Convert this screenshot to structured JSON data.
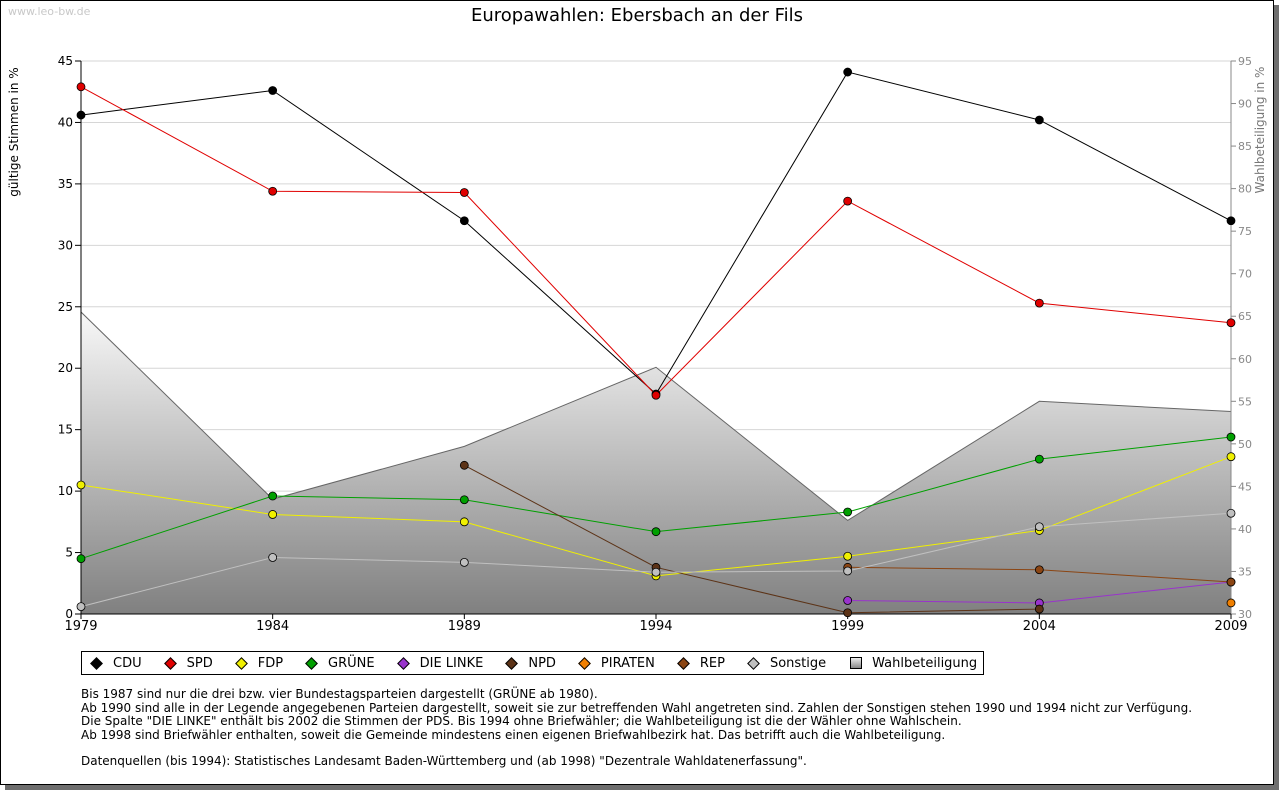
{
  "watermark": "www.leo-bw.de",
  "chart_data": {
    "type": "line",
    "title": "Europawahlen: Ebersbach an der Fils",
    "ylabel": "gültige Stimmen in %",
    "y2label": "Wahlbeteiligung in %",
    "x": [
      "1979",
      "1984",
      "1989",
      "1994",
      "1999",
      "2004",
      "2009"
    ],
    "ylim": [
      0,
      45
    ],
    "yticks": [
      0,
      5,
      10,
      15,
      20,
      25,
      30,
      35,
      40,
      45
    ],
    "y2lim": [
      30,
      95
    ],
    "y2ticks": [
      30,
      35,
      40,
      45,
      50,
      55,
      60,
      65,
      70,
      75,
      80,
      85,
      90,
      95
    ],
    "grid": true,
    "legend_position": "bottom",
    "series": [
      {
        "name": "CDU",
        "color": "#000000",
        "values": [
          40.6,
          42.6,
          32.0,
          17.9,
          44.1,
          40.2,
          32.0
        ]
      },
      {
        "name": "SPD",
        "color": "#e00000",
        "values": [
          42.9,
          34.4,
          34.3,
          17.8,
          33.6,
          25.3,
          23.7
        ]
      },
      {
        "name": "FDP",
        "color": "#f0f000",
        "values": [
          10.5,
          8.1,
          7.5,
          3.1,
          4.7,
          6.8,
          12.8
        ]
      },
      {
        "name": "GRÜNE",
        "color": "#00a000",
        "values": [
          4.5,
          9.6,
          9.3,
          6.7,
          8.3,
          12.6,
          14.4
        ]
      },
      {
        "name": "DIE LINKE",
        "color": "#9933cc",
        "values": [
          null,
          null,
          null,
          null,
          1.1,
          0.9,
          2.6
        ]
      },
      {
        "name": "NPD",
        "color": "#5c3317",
        "values": [
          null,
          null,
          12.1,
          3.8,
          0.1,
          0.4,
          null
        ]
      },
      {
        "name": "PIRATEN",
        "color": "#f07f00",
        "values": [
          null,
          null,
          null,
          null,
          null,
          null,
          0.9
        ]
      },
      {
        "name": "REP",
        "color": "#8b4513",
        "values": [
          null,
          null,
          null,
          null,
          3.8,
          3.6,
          2.6
        ]
      },
      {
        "name": "Sonstige",
        "color": "#c0c0c0",
        "values": [
          0.6,
          4.6,
          4.2,
          3.4,
          3.5,
          7.1,
          8.2
        ]
      }
    ],
    "area": {
      "name": "Wahlbeteiligung",
      "axis": "right",
      "values": [
        65.5,
        43.5,
        49.7,
        59.0,
        41.0,
        55.0,
        53.8
      ]
    }
  },
  "legend": [
    "CDU",
    "SPD",
    "FDP",
    "GRÜNE",
    "DIE LINKE",
    "NPD",
    "PIRATEN",
    "REP",
    "Sonstige",
    "Wahlbeteiligung"
  ],
  "notes": [
    "Bis 1987 sind nur die drei bzw. vier Bundestagsparteien dargestellt (GRÜNE ab 1980).",
    "Ab 1990 sind alle in der Legende angegebenen Parteien dargestellt, soweit sie zur betreffenden Wahl angetreten sind. Zahlen der Sonstigen stehen 1990 und 1994 nicht zur Verfügung.",
    "Die Spalte \"DIE LINKE\" enthält bis 2002 die Stimmen der PDS. Bis 1994 ohne Briefwähler; die Wahlbeteiligung ist die der Wähler ohne Wahlschein.",
    "Ab 1998 sind Briefwähler enthalten, soweit die Gemeinde mindestens einen eigenen Briefwahlbezirk hat. Das betrifft auch die Wahlbeteiligung.",
    "",
    "Datenquellen (bis 1994): Statistisches Landesamt Baden-Württemberg und (ab 1998) \"Dezentrale Wahldatenerfassung\"."
  ]
}
